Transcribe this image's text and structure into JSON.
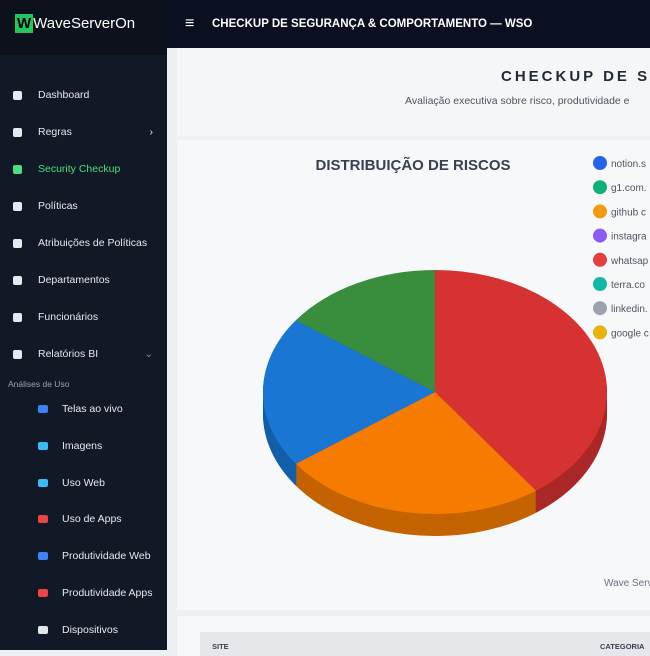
{
  "brand": "WaveServerOn",
  "topbar": {
    "title": "CHECKUP DE SEGURANÇA & COMPORTAMENTO — WSO"
  },
  "sidebar": {
    "items": [
      "Dashboard",
      "Regras",
      "Security Checkup",
      "Políticas",
      "Atribuições de Políticas",
      "Departamentos",
      "Funcionários",
      "Relatórios BI"
    ],
    "section": "Análises de Uso",
    "subitems": [
      "Telas ao vivo",
      "Imagens",
      "Uso Web",
      "Uso de Apps",
      "Produtividade Web",
      "Produtividade Apps",
      "Dispositivos"
    ]
  },
  "header": {
    "title": "CHECKUP DE SE",
    "subtitle": "Avaliação executiva sobre risco, produtividade e"
  },
  "chart_data": {
    "type": "pie3d",
    "title": "DISTRIBUIÇÃO DE RISCOS",
    "values": [
      40,
      25,
      20,
      15
    ],
    "colors": [
      "#d63232",
      "#f57c00",
      "#1976d2",
      "#388e3c"
    ],
    "legend": [
      {
        "name": "notion.s",
        "color": "#2563eb"
      },
      {
        "name": "g1.com.",
        "color": "#10b07a"
      },
      {
        "name": "github c",
        "color": "#f39c12"
      },
      {
        "name": "instagra",
        "color": "#8b5cf6"
      },
      {
        "name": "whatsap",
        "color": "#e53e3e"
      },
      {
        "name": "terra.co",
        "color": "#14b8a6"
      },
      {
        "name": "linkedin.",
        "color": "#9ca3af"
      },
      {
        "name": "google c",
        "color": "#eab308"
      }
    ]
  },
  "footer": "Wave Serv",
  "table": {
    "columns": [
      "SITE",
      "CATEGORIA"
    ]
  }
}
